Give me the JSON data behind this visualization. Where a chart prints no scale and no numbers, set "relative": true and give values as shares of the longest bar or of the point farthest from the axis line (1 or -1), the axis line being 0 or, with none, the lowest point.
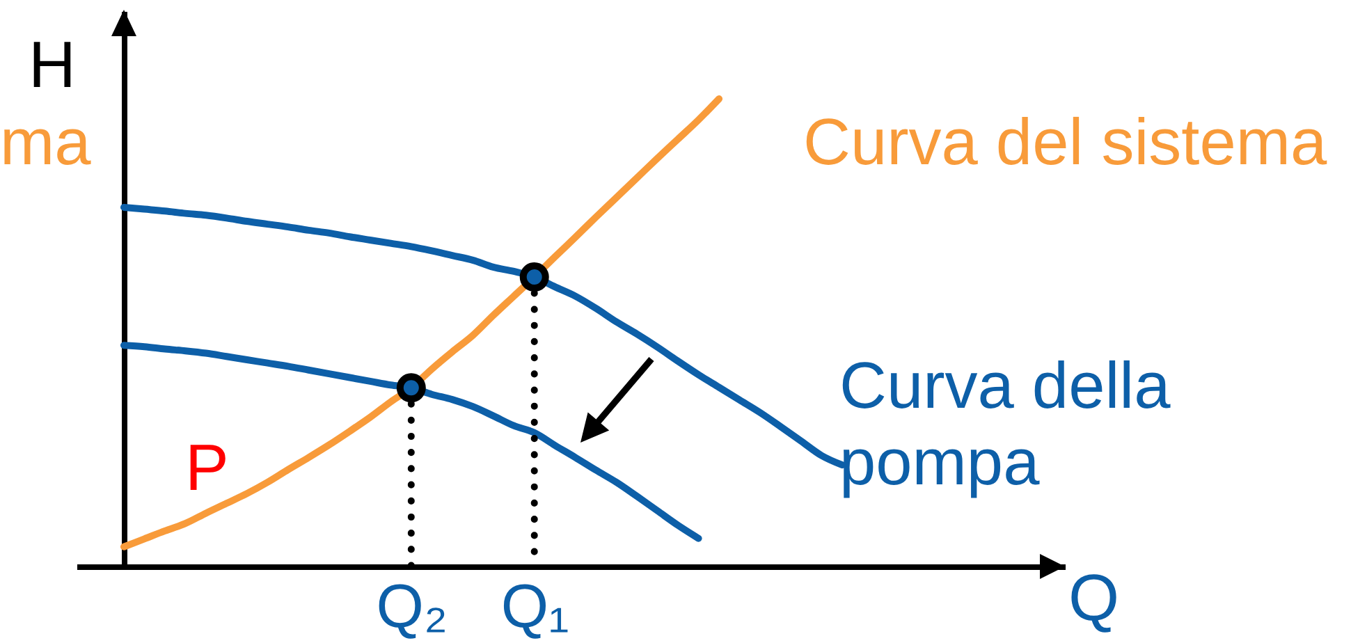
{
  "chart_data": {
    "type": "line",
    "xlabel": "Q",
    "ylabel": "H",
    "relative": true,
    "categories": [
      null,
      null,
      null,
      null,
      null,
      null,
      null,
      null,
      null,
      null,
      null,
      null,
      null,
      null,
      "Q₂",
      null,
      null,
      null,
      null,
      null,
      "Q₁",
      null,
      null,
      null,
      null,
      null,
      null,
      null,
      null,
      null,
      null,
      null,
      null,
      null,
      null,
      null
    ],
    "series": [
      {
        "name": "Curva del sistema",
        "color": "#f89b3a",
        "values": [
          0.042,
          0.059,
          0.076,
          0.092,
          0.114,
          0.135,
          0.156,
          0.18,
          0.207,
          0.233,
          0.26,
          0.289,
          0.319,
          0.352,
          0.382,
          0.422,
          0.459,
          0.494,
          0.537,
          0.578,
          0.619,
          0.662,
          0.704,
          0.747,
          0.789,
          0.831,
          0.873,
          0.914,
          0.955,
          1.0,
          null,
          null,
          null,
          null,
          null,
          null
        ]
      },
      {
        "name": "Curva della pompa",
        "color": "#0d5fa8",
        "values": [
          0.768,
          0.764,
          0.76,
          0.755,
          0.751,
          0.745,
          0.738,
          0.732,
          0.726,
          0.719,
          0.713,
          0.705,
          0.698,
          0.691,
          0.684,
          0.675,
          0.665,
          0.655,
          0.64,
          0.631,
          0.619,
          0.598,
          0.578,
          0.552,
          0.523,
          0.497,
          0.469,
          0.439,
          0.41,
          0.383,
          0.356,
          0.329,
          0.299,
          0.268,
          0.237,
          0.217
        ]
      },
      {
        "color": "#0d5fa8",
        "values": [
          0.473,
          0.47,
          0.465,
          0.461,
          0.456,
          0.449,
          0.442,
          0.435,
          0.428,
          0.42,
          0.412,
          0.404,
          0.396,
          0.388,
          0.382,
          0.368,
          0.357,
          0.342,
          0.322,
          0.301,
          0.286,
          0.259,
          0.233,
          0.206,
          0.18,
          0.15,
          0.119,
          0.088,
          0.06,
          null,
          null,
          null,
          null,
          null,
          null,
          null
        ]
      },
      {
        "type": "lollipop",
        "color": "#0d5fa8",
        "marker": "circle",
        "line_style": "dotted",
        "values": [
          null,
          null,
          null,
          null,
          null,
          null,
          null,
          null,
          null,
          null,
          null,
          null,
          null,
          null,
          0.382,
          null,
          null,
          null,
          null,
          null,
          0.619,
          null,
          null,
          null,
          null,
          null,
          null,
          null,
          null,
          null,
          null,
          null,
          null,
          null,
          null,
          null
        ]
      }
    ],
    "annotations": [
      "ma",
      "P"
    ]
  }
}
